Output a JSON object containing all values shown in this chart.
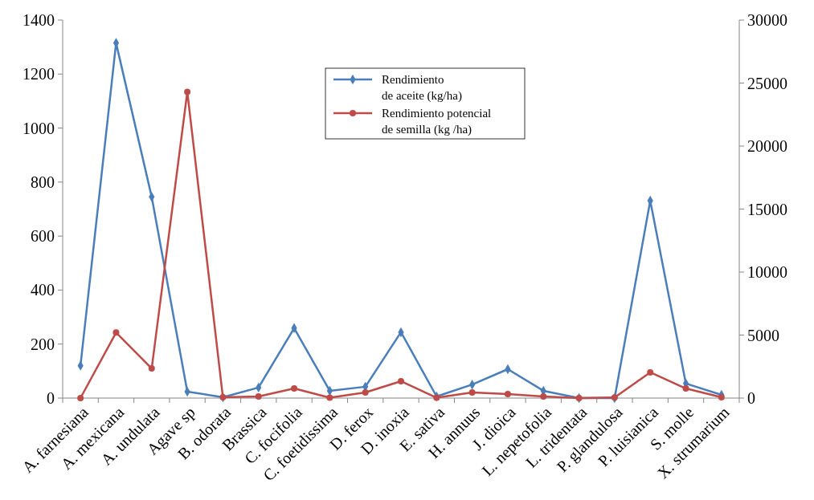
{
  "chart_data": {
    "type": "line",
    "categories": [
      "A. farnesiana",
      "A. mexicana",
      "A. undulata",
      "Agave sp",
      "B. odorata",
      "Brassica",
      "C. focifolia",
      "C. foetidissima",
      "D. ferox",
      "D. inoxia",
      "E. sativa",
      "H. annuus",
      "J. dioica",
      "L. nepetofolia",
      "L. tridentata",
      "P. glandulosa",
      "P. luisianica",
      "S. molle",
      "X. strumarium"
    ],
    "series": [
      {
        "name": "Rendimiento de aceite (kg/ha)",
        "color": "#4a7ebb",
        "marker": "diamond",
        "values": [
          120,
          1315,
          745,
          24,
          3,
          39,
          259,
          27,
          42,
          244,
          6,
          50,
          107,
          27,
          0,
          0,
          731,
          54,
          12
        ]
      },
      {
        "name": "Rendimiento potencial de semilla (kg /ha)",
        "color": "#be4b48",
        "marker": "circle",
        "axis": "y2",
        "values": [
          0,
          5200,
          2350,
          24300,
          60,
          130,
          760,
          30,
          450,
          1340,
          30,
          450,
          320,
          130,
          0,
          50,
          2040,
          760,
          60
        ]
      }
    ],
    "ylim": [
      0,
      1400
    ],
    "yticks": [
      0,
      200,
      400,
      600,
      800,
      1000,
      1200,
      1400
    ],
    "y2lim": [
      0,
      30000
    ],
    "y2ticks": [
      0,
      5000,
      10000,
      15000,
      20000,
      25000,
      30000
    ],
    "legend": "top",
    "grid": false
  }
}
